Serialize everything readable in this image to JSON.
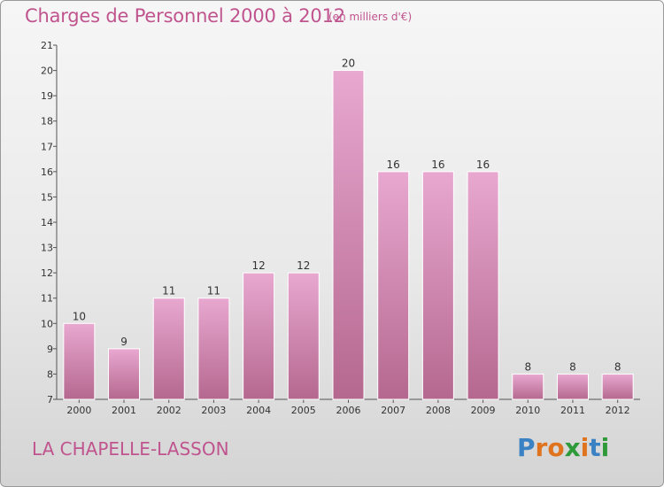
{
  "chart_data": {
    "type": "bar",
    "title": "Charges de Personnel 2000 à 2012",
    "subtitle": "(en milliers d'€)",
    "categories": [
      "2000",
      "2001",
      "2002",
      "2003",
      "2004",
      "2005",
      "2006",
      "2007",
      "2008",
      "2009",
      "2010",
      "2011",
      "2012"
    ],
    "values": [
      10,
      9,
      11,
      11,
      12,
      12,
      20,
      16,
      16,
      16,
      8,
      8,
      8
    ],
    "ylim": [
      7,
      21
    ],
    "yticks": [
      7,
      8,
      9,
      10,
      11,
      12,
      13,
      14,
      15,
      16,
      17,
      18,
      19,
      20,
      21
    ],
    "grid": false,
    "bar_color": "#d98fbd"
  },
  "commune": "LA CHAPELLE-LASSON",
  "logo": {
    "letters": [
      {
        "char": "P",
        "color": "#3b82c4"
      },
      {
        "char": "r",
        "color": "#e0731d"
      },
      {
        "char": "o",
        "color": "#e0731d"
      },
      {
        "char": "x",
        "color": "#2f9a3a"
      },
      {
        "char": "i",
        "color": "#e0731d"
      },
      {
        "char": "t",
        "color": "#3b82c4"
      },
      {
        "char": "i",
        "color": "#2f9a3a"
      }
    ]
  }
}
